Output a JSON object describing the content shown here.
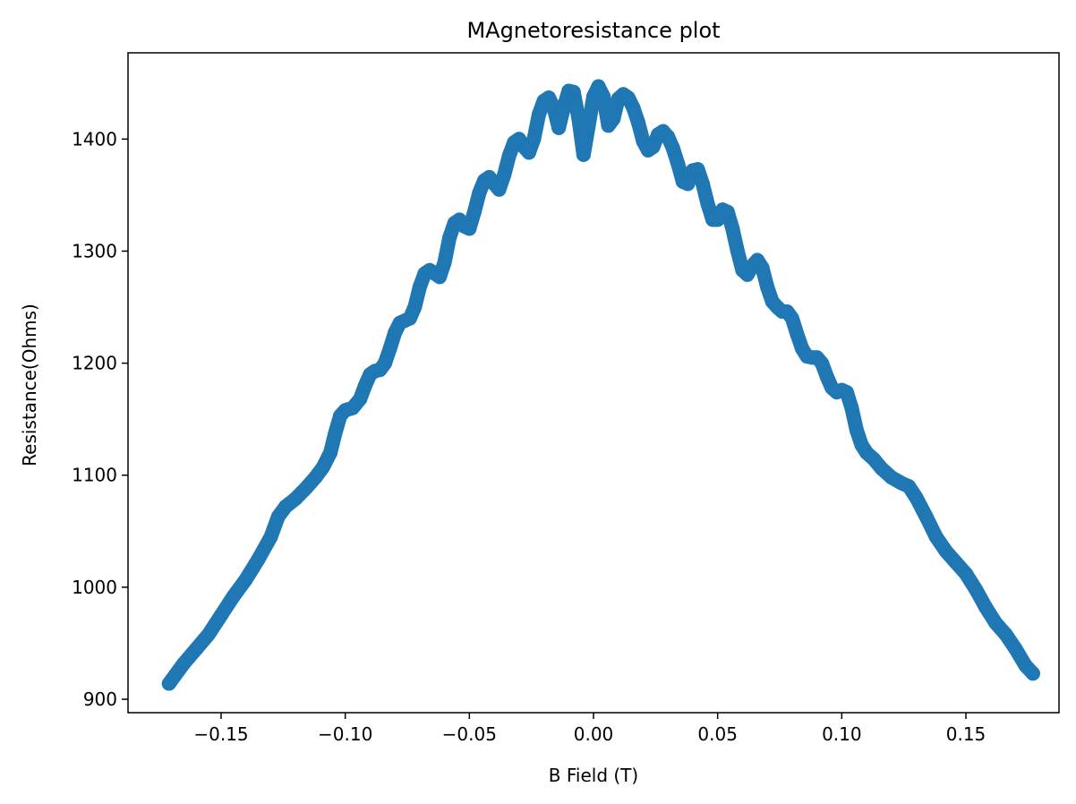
{
  "chart_data": {
    "type": "scatter",
    "title": "MAgnetoresistance plot",
    "xlabel": "B Field (T)",
    "ylabel": "Resistance(Ohms)",
    "xlim": [
      -0.1875,
      0.1875
    ],
    "ylim": [
      888,
      1477
    ],
    "grid": false,
    "marker_color": "#1f77b4",
    "xticks": [
      -0.15,
      -0.1,
      -0.05,
      0.0,
      0.05,
      0.1,
      0.15
    ],
    "xtick_labels": [
      "−0.15",
      "−0.10",
      "−0.05",
      "0.00",
      "0.05",
      "0.10",
      "0.15"
    ],
    "yticks": [
      900,
      1000,
      1100,
      1200,
      1300,
      1400
    ],
    "ytick_labels": [
      "900",
      "1000",
      "1100",
      "1200",
      "1300",
      "1400"
    ],
    "series": [
      {
        "x": [
          -0.171,
          -0.165,
          -0.16,
          -0.155,
          -0.15,
          -0.145,
          -0.14,
          -0.135,
          -0.13,
          -0.127,
          -0.124,
          -0.12,
          -0.116,
          -0.112,
          -0.109,
          -0.106,
          -0.104,
          -0.102,
          -0.1,
          -0.097,
          -0.094,
          -0.092,
          -0.09,
          -0.088,
          -0.086,
          -0.084,
          -0.082,
          -0.08,
          -0.078,
          -0.076,
          -0.074,
          -0.072,
          -0.07,
          -0.068,
          -0.066,
          -0.064,
          -0.062,
          -0.06,
          -0.058,
          -0.056,
          -0.054,
          -0.052,
          -0.05,
          -0.048,
          -0.046,
          -0.044,
          -0.042,
          -0.04,
          -0.038,
          -0.036,
          -0.034,
          -0.032,
          -0.03,
          -0.028,
          -0.026,
          -0.024,
          -0.022,
          -0.02,
          -0.018,
          -0.016,
          -0.014,
          -0.012,
          -0.01,
          -0.008,
          -0.006,
          -0.004,
          -0.002,
          0.0,
          0.002,
          0.004,
          0.006,
          0.008,
          0.01,
          0.012,
          0.014,
          0.016,
          0.018,
          0.02,
          0.022,
          0.024,
          0.026,
          0.028,
          0.03,
          0.032,
          0.034,
          0.036,
          0.038,
          0.04,
          0.042,
          0.044,
          0.046,
          0.048,
          0.05,
          0.052,
          0.054,
          0.056,
          0.058,
          0.06,
          0.062,
          0.064,
          0.066,
          0.068,
          0.07,
          0.072,
          0.074,
          0.076,
          0.078,
          0.08,
          0.082,
          0.084,
          0.086,
          0.088,
          0.09,
          0.092,
          0.094,
          0.096,
          0.098,
          0.1,
          0.102,
          0.104,
          0.106,
          0.108,
          0.11,
          0.113,
          0.116,
          0.12,
          0.124,
          0.127,
          0.13,
          0.134,
          0.138,
          0.142,
          0.146,
          0.15,
          0.154,
          0.158,
          0.162,
          0.166,
          0.17,
          0.174,
          0.177
        ],
        "y": [
          914,
          932,
          945,
          958,
          975,
          992,
          1007,
          1025,
          1045,
          1063,
          1072,
          1079,
          1088,
          1098,
          1107,
          1120,
          1138,
          1153,
          1158,
          1160,
          1168,
          1180,
          1190,
          1193,
          1194,
          1200,
          1213,
          1227,
          1236,
          1238,
          1240,
          1250,
          1268,
          1280,
          1283,
          1280,
          1277,
          1290,
          1312,
          1325,
          1328,
          1322,
          1320,
          1335,
          1352,
          1363,
          1366,
          1360,
          1355,
          1368,
          1385,
          1397,
          1400,
          1393,
          1388,
          1400,
          1422,
          1434,
          1437,
          1428,
          1410,
          1428,
          1443,
          1442,
          1418,
          1386,
          1412,
          1438,
          1447,
          1438,
          1412,
          1418,
          1436,
          1440,
          1437,
          1428,
          1415,
          1398,
          1390,
          1393,
          1404,
          1407,
          1402,
          1392,
          1378,
          1362,
          1360,
          1372,
          1373,
          1360,
          1342,
          1328,
          1328,
          1337,
          1335,
          1320,
          1300,
          1283,
          1279,
          1287,
          1292,
          1285,
          1268,
          1255,
          1250,
          1246,
          1246,
          1240,
          1226,
          1213,
          1206,
          1205,
          1205,
          1200,
          1188,
          1178,
          1174,
          1176,
          1174,
          1160,
          1140,
          1127,
          1120,
          1114,
          1106,
          1098,
          1093,
          1090,
          1080,
          1063,
          1045,
          1032,
          1022,
          1012,
          998,
          982,
          968,
          958,
          945,
          930,
          923
        ]
      }
    ]
  }
}
